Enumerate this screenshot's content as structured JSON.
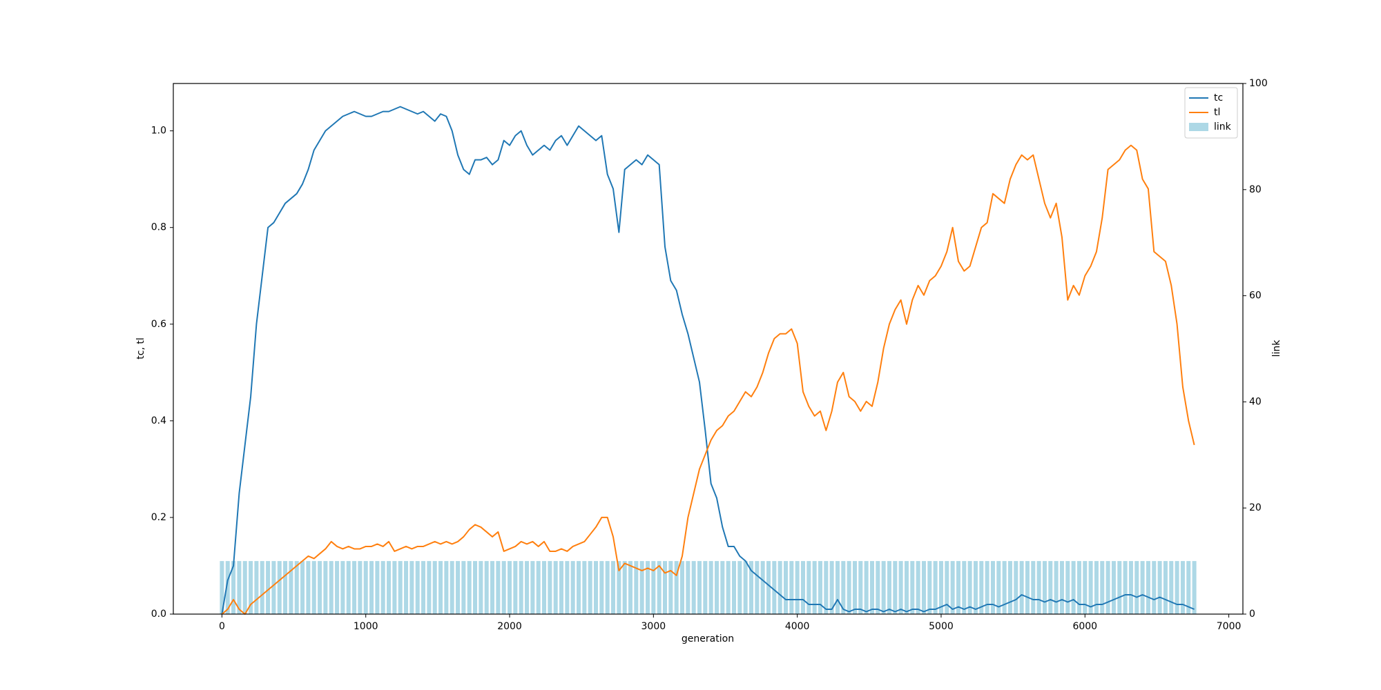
{
  "chart_data": {
    "type": "line",
    "x_label": "generation",
    "y_label": "tc, tl",
    "y2_label": "link",
    "legend": "upper right",
    "xlim": [
      -338,
      7098
    ],
    "ylim": [
      0,
      1.098
    ],
    "y2lim": [
      0,
      100
    ],
    "xticks": [
      0,
      1000,
      2000,
      3000,
      4000,
      5000,
      6000,
      7000
    ],
    "yticks": [
      {
        "value": 0,
        "label": "0.0"
      },
      0.2,
      0.4,
      0.6,
      0.8,
      {
        "value": 1,
        "label": "1.0"
      }
    ],
    "y2ticks": [
      0,
      20,
      40,
      60,
      80,
      100
    ],
    "x": [
      0,
      40,
      80,
      120,
      160,
      200,
      240,
      280,
      320,
      360,
      400,
      440,
      480,
      520,
      560,
      600,
      640,
      680,
      720,
      760,
      800,
      840,
      880,
      920,
      960,
      1000,
      1040,
      1080,
      1120,
      1160,
      1200,
      1240,
      1280,
      1320,
      1360,
      1400,
      1440,
      1480,
      1520,
      1560,
      1600,
      1640,
      1680,
      1720,
      1760,
      1800,
      1840,
      1880,
      1920,
      1960,
      2000,
      2040,
      2080,
      2120,
      2160,
      2200,
      2240,
      2280,
      2320,
      2360,
      2400,
      2440,
      2480,
      2520,
      2560,
      2600,
      2640,
      2680,
      2720,
      2760,
      2800,
      2840,
      2880,
      2920,
      2960,
      3000,
      3040,
      3080,
      3120,
      3160,
      3200,
      3240,
      3280,
      3320,
      3360,
      3400,
      3440,
      3480,
      3520,
      3560,
      3600,
      3640,
      3680,
      3720,
      3760,
      3800,
      3840,
      3880,
      3920,
      3960,
      4000,
      4040,
      4080,
      4120,
      4160,
      4200,
      4240,
      4280,
      4320,
      4360,
      4400,
      4440,
      4480,
      4520,
      4560,
      4600,
      4640,
      4680,
      4720,
      4760,
      4800,
      4840,
      4880,
      4920,
      4960,
      5000,
      5040,
      5080,
      5120,
      5160,
      5200,
      5240,
      5280,
      5320,
      5360,
      5400,
      5440,
      5480,
      5520,
      5560,
      5600,
      5640,
      5680,
      5720,
      5760,
      5800,
      5840,
      5880,
      5920,
      5960,
      6000,
      6040,
      6080,
      6120,
      6160,
      6200,
      6240,
      6280,
      6320,
      6360,
      6400,
      6440,
      6480,
      6520,
      6560,
      6600,
      6640,
      6680,
      6720,
      6760
    ],
    "series": [
      {
        "name": "tc",
        "color": "#1f77b4",
        "values": [
          0,
          0.07,
          0.1,
          0.25,
          0.35,
          0.45,
          0.6,
          0.7,
          0.8,
          0.81,
          0.83,
          0.85,
          0.86,
          0.87,
          0.89,
          0.92,
          0.96,
          0.98,
          1.0,
          1.01,
          1.02,
          1.03,
          1.035,
          1.04,
          1.035,
          1.03,
          1.03,
          1.035,
          1.04,
          1.04,
          1.045,
          1.05,
          1.045,
          1.04,
          1.035,
          1.04,
          1.03,
          1.02,
          1.035,
          1.03,
          1.0,
          0.95,
          0.92,
          0.91,
          0.94,
          0.94,
          0.945,
          0.93,
          0.94,
          0.98,
          0.97,
          0.99,
          1.0,
          0.97,
          0.95,
          0.96,
          0.97,
          0.96,
          0.98,
          0.99,
          0.97,
          0.99,
          1.01,
          1.0,
          0.99,
          0.98,
          0.99,
          0.91,
          0.88,
          0.79,
          0.92,
          0.93,
          0.94,
          0.93,
          0.95,
          0.94,
          0.93,
          0.76,
          0.69,
          0.67,
          0.62,
          0.58,
          0.53,
          0.48,
          0.38,
          0.27,
          0.24,
          0.18,
          0.14,
          0.14,
          0.12,
          0.11,
          0.09,
          0.08,
          0.07,
          0.06,
          0.05,
          0.04,
          0.03,
          0.03,
          0.03,
          0.03,
          0.02,
          0.02,
          0.02,
          0.01,
          0.01,
          0.03,
          0.01,
          0.005,
          0.01,
          0.01,
          0.005,
          0.01,
          0.01,
          0.005,
          0.01,
          0.005,
          0.01,
          0.005,
          0.01,
          0.01,
          0.005,
          0.01,
          0.01,
          0.015,
          0.02,
          0.01,
          0.015,
          0.01,
          0.015,
          0.01,
          0.015,
          0.02,
          0.02,
          0.015,
          0.02,
          0.025,
          0.03,
          0.04,
          0.035,
          0.03,
          0.03,
          0.025,
          0.03,
          0.025,
          0.03,
          0.025,
          0.03,
          0.02,
          0.02,
          0.015,
          0.02,
          0.02,
          0.025,
          0.03,
          0.035,
          0.04,
          0.04,
          0.035,
          0.04,
          0.035,
          0.03,
          0.035,
          0.03,
          0.025,
          0.02,
          0.02,
          0.015,
          0.01
        ]
      },
      {
        "name": "tl",
        "color": "#ff7f0e",
        "values": [
          0,
          0.01,
          0.03,
          0.01,
          0,
          0.02,
          0.03,
          0.04,
          0.05,
          0.06,
          0.07,
          0.08,
          0.09,
          0.1,
          0.11,
          0.12,
          0.115,
          0.125,
          0.135,
          0.15,
          0.14,
          0.135,
          0.14,
          0.135,
          0.135,
          0.14,
          0.14,
          0.145,
          0.14,
          0.15,
          0.13,
          0.135,
          0.14,
          0.135,
          0.14,
          0.14,
          0.145,
          0.15,
          0.145,
          0.15,
          0.145,
          0.15,
          0.16,
          0.175,
          0.185,
          0.18,
          0.17,
          0.16,
          0.17,
          0.13,
          0.135,
          0.14,
          0.15,
          0.145,
          0.15,
          0.14,
          0.15,
          0.13,
          0.13,
          0.135,
          0.13,
          0.14,
          0.145,
          0.15,
          0.165,
          0.18,
          0.2,
          0.2,
          0.16,
          0.09,
          0.105,
          0.1,
          0.095,
          0.09,
          0.095,
          0.09,
          0.1,
          0.085,
          0.09,
          0.08,
          0.12,
          0.2,
          0.25,
          0.3,
          0.33,
          0.36,
          0.38,
          0.39,
          0.41,
          0.42,
          0.44,
          0.46,
          0.45,
          0.47,
          0.5,
          0.54,
          0.57,
          0.58,
          0.58,
          0.59,
          0.56,
          0.46,
          0.43,
          0.41,
          0.42,
          0.38,
          0.42,
          0.48,
          0.5,
          0.45,
          0.44,
          0.42,
          0.44,
          0.43,
          0.48,
          0.55,
          0.6,
          0.63,
          0.65,
          0.6,
          0.65,
          0.68,
          0.66,
          0.69,
          0.7,
          0.72,
          0.75,
          0.8,
          0.73,
          0.71,
          0.72,
          0.76,
          0.8,
          0.81,
          0.87,
          0.86,
          0.85,
          0.9,
          0.93,
          0.95,
          0.94,
          0.95,
          0.9,
          0.85,
          0.82,
          0.85,
          0.78,
          0.65,
          0.68,
          0.66,
          0.7,
          0.72,
          0.75,
          0.82,
          0.92,
          0.93,
          0.94,
          0.96,
          0.97,
          0.96,
          0.9,
          0.88,
          0.75,
          0.74,
          0.73,
          0.68,
          0.6,
          0.47,
          0.4,
          0.35
        ]
      },
      {
        "name": "link",
        "color": "#add8e6",
        "type": "bar",
        "axis": "y2",
        "values": [
          10,
          10,
          10,
          10,
          10,
          10,
          10,
          10,
          10,
          10,
          10,
          10,
          10,
          10,
          10,
          10,
          10,
          10,
          10,
          10,
          10,
          10,
          10,
          10,
          10,
          10,
          10,
          10,
          10,
          10,
          10,
          10,
          10,
          10,
          10,
          10,
          10,
          10,
          10,
          10,
          10,
          10,
          10,
          10,
          10,
          10,
          10,
          10,
          10,
          10,
          10,
          10,
          10,
          10,
          10,
          10,
          10,
          10,
          10,
          10,
          10,
          10,
          10,
          10,
          10,
          10,
          10,
          10,
          10,
          10,
          10,
          10,
          10,
          10,
          10,
          10,
          10,
          10,
          10,
          10,
          10,
          10,
          10,
          10,
          10,
          10,
          10,
          10,
          10,
          10,
          10,
          10,
          10,
          10,
          10,
          10,
          10,
          10,
          10,
          10,
          10,
          10,
          10,
          10,
          10,
          10,
          10,
          10,
          10,
          10,
          10,
          10,
          10,
          10,
          10,
          10,
          10,
          10,
          10,
          10,
          10,
          10,
          10,
          10,
          10,
          10,
          10,
          10,
          10,
          10,
          10,
          10,
          10,
          10,
          10,
          10,
          10,
          10,
          10,
          10,
          10,
          10,
          10,
          10,
          10,
          10,
          10,
          10,
          10,
          10,
          10,
          10,
          10,
          10,
          10,
          10,
          10,
          10,
          10,
          10,
          10,
          10,
          10,
          10,
          10,
          10,
          10,
          10,
          10,
          10
        ]
      }
    ]
  }
}
